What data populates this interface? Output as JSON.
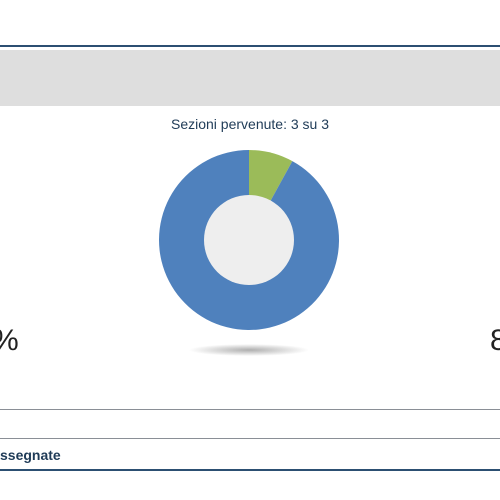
{
  "sections_received": "Sezioni pervenute: 3 su 3",
  "edge_left_text": "%",
  "edge_right_text": "8",
  "footer_label": "ssegnate",
  "colors": {
    "primary": "#4f81bd",
    "secondary": "#9bbb59",
    "hole": "#eeeeee",
    "rule": "#2c4f72",
    "band": "#dedede"
  },
  "chart_data": {
    "type": "pie",
    "title": "",
    "values": [
      8,
      92
    ],
    "slice_colors": [
      "#9bbb59",
      "#4f81bd"
    ]
  }
}
